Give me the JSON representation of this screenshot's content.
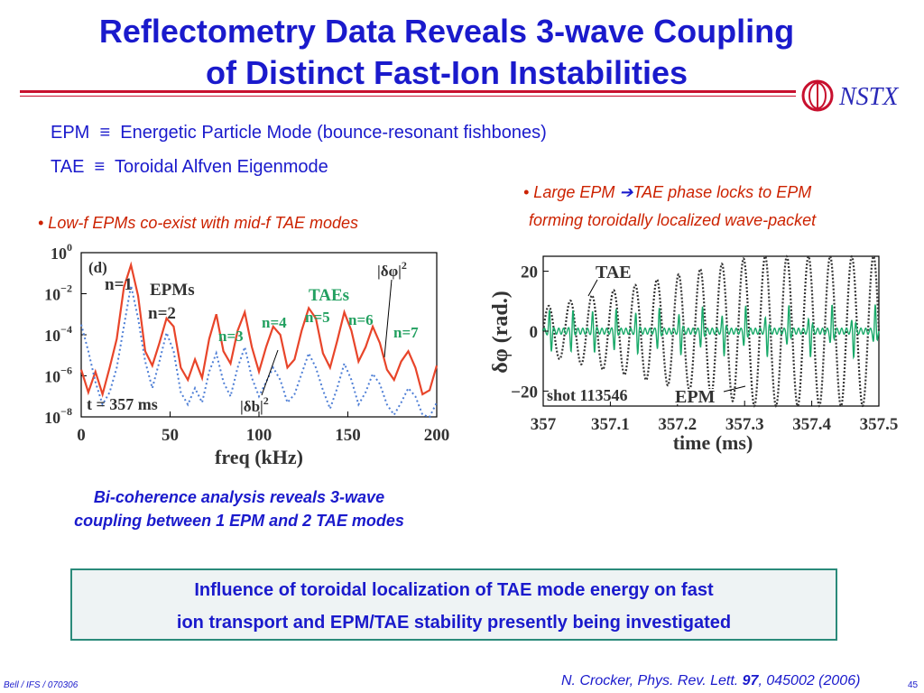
{
  "title": {
    "line1": "Reflectometry Data Reveals 3-wave Coupling",
    "line2": "of Distinct Fast-Ion Instabilities"
  },
  "logo": {
    "text": "NSTX",
    "icon": "nstx-logo-icon"
  },
  "definitions": [
    {
      "abbr": "EPM",
      "symbol": "≡",
      "text": "Energetic Particle Mode (bounce-resonant fishbones)"
    },
    {
      "abbr": "TAE",
      "symbol": "≡",
      "text": "Toroidal Alfven Eigenmode"
    }
  ],
  "left_panel": {
    "bullet": "• Low-f EPMs co-exist with mid-f TAE modes",
    "caption_line1": "Bi-coherence analysis reveals 3-wave",
    "caption_line2": "coupling between 1 EPM and 2 TAE modes"
  },
  "right_panel": {
    "bullet_pre": "• Large EPM ",
    "arrow": "➔",
    "bullet_post": "TAE phase locks to EPM",
    "bullet_line2": "forming toroidally localized wave-packet"
  },
  "chart_data": [
    {
      "type": "line",
      "panel_label": "(d)",
      "xlabel": "freq (kHz)",
      "ylabel": "",
      "xlim": [
        0,
        200
      ],
      "ylim_log10": [
        -8,
        0
      ],
      "x_ticks": [
        "0",
        "50",
        "100",
        "150",
        "200"
      ],
      "y_ticks": [
        {
          "base": "10",
          "exp": "0"
        },
        {
          "base": "10",
          "exp": "−2"
        },
        {
          "base": "10",
          "exp": "−4"
        },
        {
          "base": "10",
          "exp": "−6"
        },
        {
          "base": "10",
          "exp": "−8"
        }
      ],
      "annotations": {
        "epms": "EPMs",
        "taes": "TAEs",
        "n1": "n=1",
        "n2": "n=2",
        "n3": "n=3",
        "n4": "n=4",
        "n5": "n=5",
        "n6": "n=6",
        "n7": "n=7",
        "time": "t = 357 ms",
        "dphi2": "|δφ|",
        "db2": "|δb|",
        "sup2": "2"
      },
      "series": [
        {
          "name": "|δφ|2",
          "color": "#e8452a",
          "x": [
            0,
            4,
            8,
            12,
            16,
            20,
            24,
            28,
            32,
            36,
            40,
            44,
            48,
            52,
            56,
            60,
            64,
            68,
            72,
            76,
            80,
            84,
            88,
            92,
            96,
            100,
            104,
            108,
            112,
            116,
            120,
            124,
            128,
            132,
            136,
            140,
            144,
            148,
            152,
            156,
            160,
            164,
            168,
            172,
            176,
            180,
            184,
            188,
            192,
            196,
            200
          ],
          "log10y": [
            -5.7,
            -6.8,
            -5.8,
            -6.9,
            -5.6,
            -4.2,
            -1.7,
            -0.6,
            -2.1,
            -4.8,
            -5.5,
            -4.4,
            -3.2,
            -3.6,
            -5.6,
            -6.2,
            -5.2,
            -6.1,
            -4.2,
            -3.0,
            -4.8,
            -5.4,
            -3.8,
            -2.9,
            -4.6,
            -5.8,
            -4.6,
            -3.6,
            -4.0,
            -5.6,
            -5.2,
            -3.8,
            -2.7,
            -3.2,
            -4.9,
            -5.6,
            -4.3,
            -2.9,
            -3.8,
            -5.3,
            -4.6,
            -3.6,
            -4.4,
            -5.7,
            -6.2,
            -5.3,
            -4.8,
            -5.6,
            -6.9,
            -6.7,
            -5.5
          ]
        },
        {
          "name": "|δb|2",
          "color": "#4f7fd6",
          "x": [
            0,
            4,
            8,
            12,
            16,
            20,
            24,
            28,
            32,
            36,
            40,
            44,
            48,
            52,
            56,
            60,
            64,
            68,
            72,
            76,
            80,
            84,
            88,
            92,
            96,
            100,
            104,
            108,
            112,
            116,
            120,
            124,
            128,
            132,
            136,
            140,
            144,
            148,
            152,
            156,
            160,
            164,
            168,
            172,
            176,
            180,
            184,
            188,
            192,
            196,
            200
          ],
          "log10y": [
            -3.5,
            -4.8,
            -6.3,
            -7.4,
            -6.8,
            -5.6,
            -3.6,
            -1.6,
            -3.2,
            -5.3,
            -6.6,
            -5.3,
            -3.9,
            -4.8,
            -6.8,
            -7.4,
            -6.6,
            -7.3,
            -5.8,
            -4.9,
            -6.3,
            -7.0,
            -5.6,
            -4.6,
            -6.1,
            -7.0,
            -6.3,
            -5.6,
            -6.2,
            -7.3,
            -6.9,
            -5.9,
            -4.9,
            -5.6,
            -6.7,
            -7.6,
            -6.6,
            -5.4,
            -6.2,
            -7.4,
            -6.8,
            -5.9,
            -6.4,
            -7.4,
            -7.9,
            -7.3,
            -6.6,
            -7.0,
            -7.9,
            -8.0,
            -7.3
          ]
        }
      ]
    },
    {
      "type": "line",
      "xlabel": "time (ms)",
      "ylabel": "δφ (rad.)",
      "xlim": [
        357,
        357.5
      ],
      "ylim": [
        -25,
        25
      ],
      "x_ticks": [
        "357",
        "357.1",
        "357.2",
        "357.3",
        "357.4",
        "357.5"
      ],
      "y_ticks": [
        "20",
        "0",
        "−20"
      ],
      "annotations": {
        "tae": "TAE",
        "epm": "EPM",
        "shot": "shot 113546"
      },
      "series": [
        {
          "name": "EPM",
          "color": "#333333",
          "style": "dotted",
          "freq_khz": 31,
          "amplitude": [
            8,
            25
          ]
        },
        {
          "name": "TAE",
          "color": "#1aaa6a",
          "style": "solid",
          "freq_khz": 140,
          "amplitude": [
            1,
            9
          ]
        }
      ]
    }
  ],
  "conclusion_box": {
    "line1": "Influence of toroidal localization of TAE mode energy on fast",
    "line2": "ion transport and EPM/TAE stability presently being investigated"
  },
  "footer": {
    "left": "Bell / IFS / 070306",
    "ref_pre": "N. Crocker, Phys. Rev. Lett. ",
    "ref_vol": "97",
    "ref_post": ", 045002 (2006)",
    "page": "45"
  }
}
